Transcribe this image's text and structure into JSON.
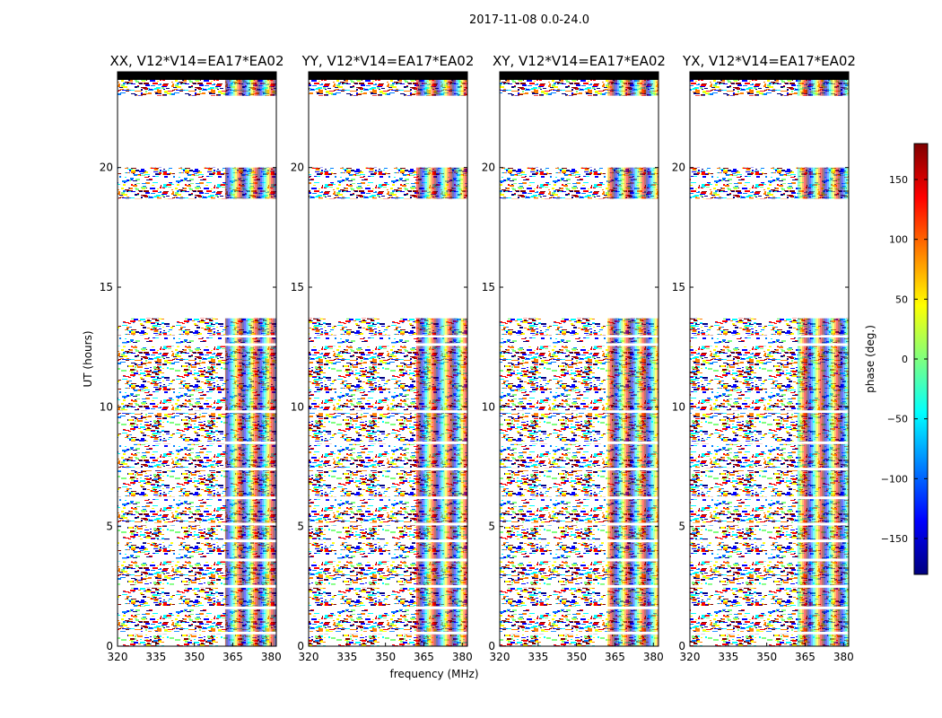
{
  "figure": {
    "title": "2017-11-08 0.0-24.0",
    "ylabel": "UT (hours)",
    "xlabel": "frequency (MHz)"
  },
  "chart_data": {
    "type": "heatmap",
    "x_range": [
      320,
      382
    ],
    "y_range": [
      0,
      24
    ],
    "x_ticks": [
      320,
      335,
      350,
      365,
      380
    ],
    "y_ticks": [
      0,
      5,
      10,
      15,
      20
    ],
    "panels": [
      {
        "title": "XX, V12*V14=EA17*EA02"
      },
      {
        "title": "YY, V12*V14=EA17*EA02"
      },
      {
        "title": "XY, V12*V14=EA17*EA02"
      },
      {
        "title": "YX, V12*V14=EA17*EA02"
      }
    ],
    "data_segments_hours": [
      [
        0.0,
        12.9
      ],
      [
        13.0,
        13.7
      ],
      [
        18.7,
        20.0
      ],
      [
        23.0,
        24.0
      ]
    ],
    "colorbar": {
      "label": "phase (deg.)",
      "range": [
        -180,
        180
      ],
      "ticks": [
        -150,
        -100,
        -50,
        0,
        50,
        100,
        150
      ],
      "tick_labels": [
        "−150",
        "−100",
        "−50",
        "0",
        "50",
        "100",
        "150"
      ],
      "colormap": [
        "#00007f",
        "#0000ff",
        "#007fff",
        "#00ffff",
        "#7fff7f",
        "#ffff00",
        "#ff7f00",
        "#ff0000",
        "#7f0000"
      ]
    }
  }
}
